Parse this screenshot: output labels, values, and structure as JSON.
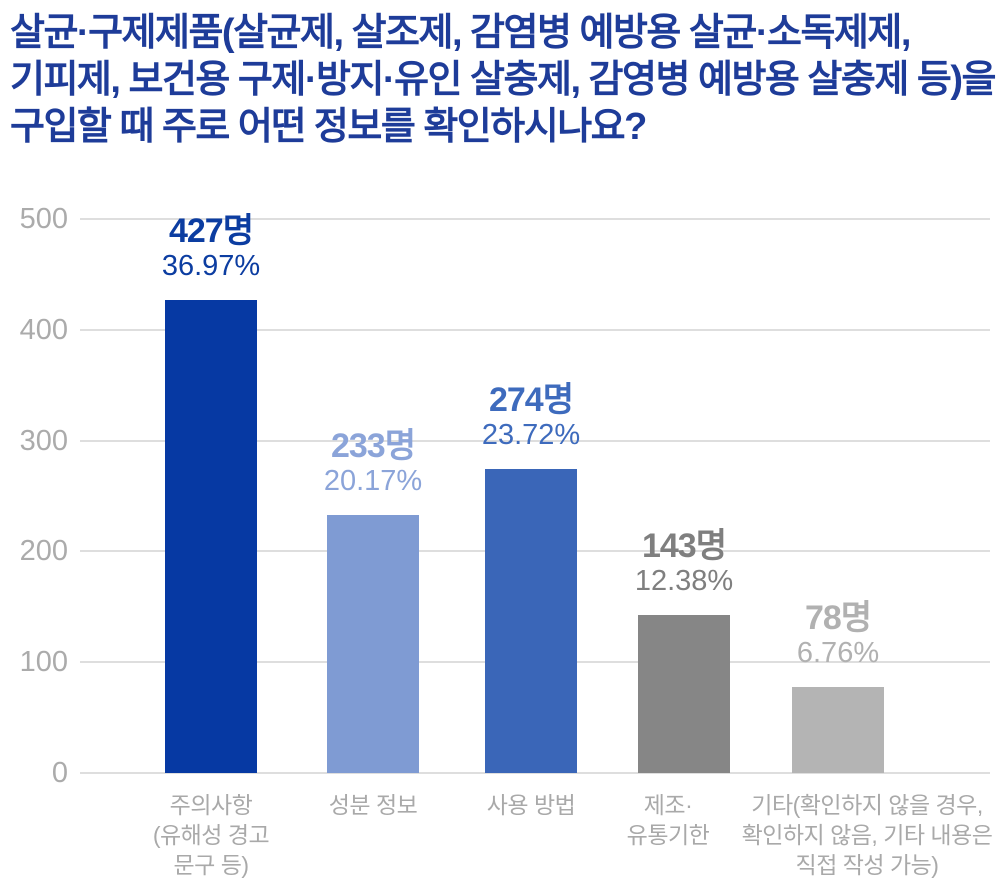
{
  "title": {
    "lines": [
      "살균·구제제품(살균제, 살조제, 감염병 예방용 살균·소독제제,",
      "기피제, 보건용 구제·방지·유인 살충제, 감영병 예방용 살충제 등)을",
      "구입할 때 주로 어떤 정보를 확인하시나요?"
    ],
    "color": "#1e3c99"
  },
  "chart_data": {
    "type": "bar",
    "title": "살균·구제제품(살균제, 살조제, 감염병 예방용 살균·소독제제, 기피제, 보건용 구제·방지·유인 살충제, 감영병 예방용 살충제 등)을 구입할 때 주로 어떤 정보를 확인하시나요?",
    "categories": [
      [
        "주의사항",
        "(유해성 경고",
        "문구 등)"
      ],
      [
        "성분 정보"
      ],
      [
        "사용 방법"
      ],
      [
        "제조·",
        "유통기한"
      ],
      [
        "기타(확인하지 않을 경우,",
        "확인하지 않음, 기타 내용은",
        "직접 작성 가능)"
      ]
    ],
    "values": [
      427,
      233,
      274,
      143,
      78
    ],
    "count_labels": [
      "427명",
      "233명",
      "274명",
      "143명",
      "78명"
    ],
    "percent_labels": [
      "36.97%",
      "20.17%",
      "23.72%",
      "12.38%",
      "6.76%"
    ],
    "bar_colors": [
      "#0639a3",
      "#7f9bd3",
      "#3a66b8",
      "#868686",
      "#b4b4b4"
    ],
    "label_colors": [
      "#0c3da1",
      "#8ba4d9",
      "#3e6bbd",
      "#7f7f7f",
      "#b1b1b1"
    ],
    "xlabel": "",
    "ylabel": "",
    "ylim": [
      0,
      500
    ],
    "yticks": [
      0,
      100,
      200,
      300,
      400,
      500
    ],
    "grid": true,
    "legend": "none",
    "axis_colors": {
      "gridline": "#dedede",
      "ytick_text": "#ababab",
      "category_text": "#a9a9a9"
    }
  }
}
